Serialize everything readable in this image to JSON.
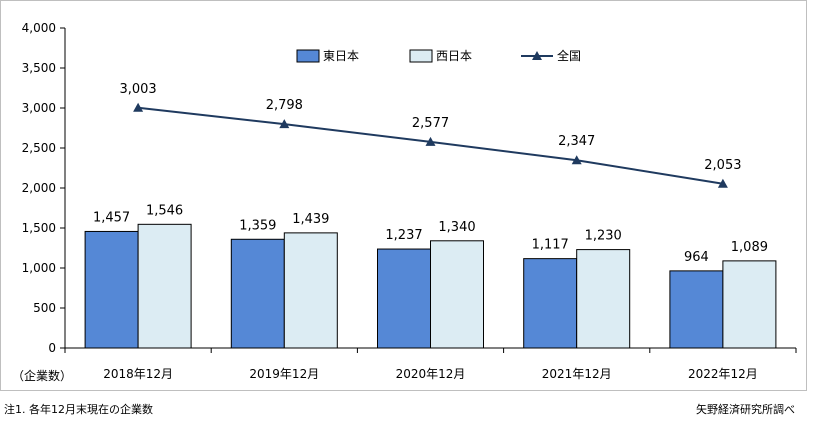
{
  "chart_data": {
    "type": "bar",
    "categories": [
      "2018年12月",
      "2019年12月",
      "2020年12月",
      "2021年12月",
      "2022年12月"
    ],
    "series": [
      {
        "name": "東日本",
        "type": "bar",
        "color": "#5588d6",
        "values": [
          1457,
          1359,
          1237,
          1117,
          964
        ]
      },
      {
        "name": "西日本",
        "type": "bar",
        "color": "#dcecf3",
        "values": [
          1546,
          1439,
          1340,
          1230,
          1089
        ]
      },
      {
        "name": "全国",
        "type": "line",
        "color": "#1f3a5f",
        "marker": "triangle",
        "values": [
          3003,
          2798,
          2577,
          2347,
          2053
        ]
      }
    ],
    "value_labels": {
      "東日本": [
        "1,457",
        "1,359",
        "1,237",
        "1,117",
        "964"
      ],
      "西日本": [
        "1,546",
        "1,439",
        "1,340",
        "1,230",
        "1,089"
      ],
      "全国": [
        "3,003",
        "2,798",
        "2,577",
        "2,347",
        "2,053"
      ]
    },
    "ylim": [
      0,
      4000
    ],
    "yticks": [
      0,
      500,
      1000,
      1500,
      2000,
      2500,
      3000,
      3500,
      4000
    ],
    "ytick_labels": [
      "0",
      "500",
      "1,000",
      "1,500",
      "2,000",
      "2,500",
      "3,000",
      "3,500",
      "4,000"
    ],
    "ylabel": "（企業数）",
    "grid": false,
    "legend_position": "top-center"
  },
  "footnote": "注1.  各年12月末現在の企業数",
  "source": "矢野経済研究所調べ"
}
